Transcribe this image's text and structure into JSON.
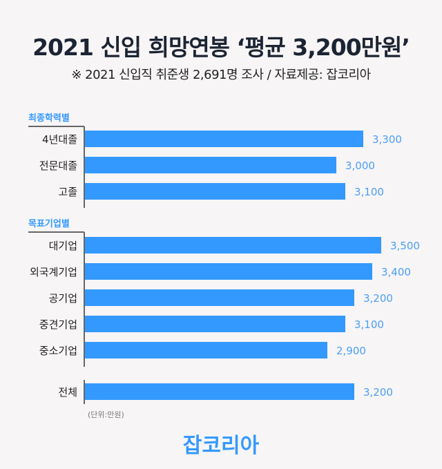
{
  "chart_data": {
    "type": "bar",
    "orientation": "horizontal",
    "title": "2021 신입 희망연봉 ‘평균 3,200만원’",
    "subtitle": "※ 2021 신입직 취준생 2,691명 조사 / 자료제공: 잡코리아",
    "unit_label": "(단위:만원)",
    "groups": [
      {
        "name": "최종학력별",
        "categories": [
          "4년대졸",
          "전문대졸",
          "고졸"
        ],
        "values": [
          3300,
          3000,
          3100
        ],
        "labels": [
          "3,300",
          "3,000",
          "3,100"
        ]
      },
      {
        "name": "목표기업별",
        "categories": [
          "대기업",
          "외국계기업",
          "공기업",
          "중견기업",
          "중소기업"
        ],
        "values": [
          3500,
          3400,
          3200,
          3100,
          2900
        ],
        "labels": [
          "3,500",
          "3,400",
          "3,200",
          "3,100",
          "2,900"
        ]
      },
      {
        "name": "",
        "categories": [
          "전체"
        ],
        "values": [
          3200
        ],
        "labels": [
          "3,200"
        ]
      }
    ],
    "bar_color": "#3399ff",
    "label_color": "#4a9ff5",
    "group_label_color": "#3399ff"
  },
  "logo": "잡코리아"
}
